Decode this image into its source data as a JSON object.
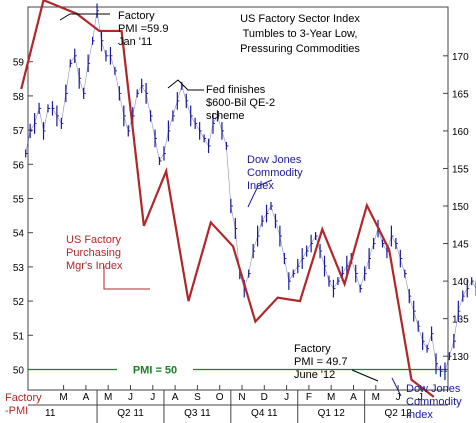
{
  "chart_data": {
    "type": "line",
    "title_lines": [
      "US Factory Sector Index",
      "Tumbles to 3-Year Low,",
      "Pressuring Commodities"
    ],
    "left_axis": {
      "ticks": [
        "59",
        "58",
        "57",
        "56",
        "55",
        "54",
        "53",
        "52",
        "51",
        "50"
      ],
      "range": [
        49.4,
        60.6
      ],
      "bottom_label_lines": [
        "Factory",
        "-PMI"
      ]
    },
    "right_axis": {
      "ticks": [
        "170",
        "165",
        "160",
        "155",
        "150",
        "145",
        "140",
        "135",
        "130"
      ],
      "range": [
        125.5,
        176.5
      ]
    },
    "x_axis": {
      "months": [
        "M",
        "A",
        "M",
        "J",
        "J",
        "A",
        "S",
        "O",
        "N",
        "D",
        "J",
        "F",
        "M",
        "A",
        "M",
        "J",
        "J"
      ],
      "quarters": [
        "11",
        "Q2 11",
        "Q3 11",
        "Q4 11",
        "Q1 12",
        "Q2 12"
      ]
    },
    "series": [
      {
        "name": "US Factory Purchasing Mgr's Index",
        "axis": "left",
        "color": "#b0272a",
        "x": [
          -1.9,
          -0.9,
          0.6,
          1.6,
          2.6,
          3.6,
          4.6,
          5.6,
          6.6,
          7.6,
          8.6,
          9.6,
          10.6,
          11.6,
          12.6,
          13.6,
          14.6,
          15.6,
          16.6
        ],
        "values": [
          58.2,
          60.8,
          60.4,
          59.9,
          59.9,
          54.2,
          55.8,
          52.0,
          54.3,
          53.6,
          51.4,
          52.1,
          52.0,
          54.1,
          52.5,
          54.8,
          53.5,
          49.7,
          49.2
        ]
      },
      {
        "name": "Dow Jones Commodity Index",
        "axis": "right",
        "color": "#1a1a9a",
        "x_start": -1.7,
        "x_step": 0.2,
        "values": [
          157,
          160,
          161,
          163,
          160,
          163,
          163,
          162,
          161,
          165,
          169,
          170,
          167,
          165,
          169,
          172,
          176,
          172,
          170,
          170,
          168,
          165,
          162,
          160,
          162,
          165,
          166,
          165,
          162,
          159,
          156,
          157,
          160,
          162,
          164,
          166,
          164,
          162,
          161,
          160,
          159,
          158,
          161,
          162,
          160,
          158,
          150,
          147,
          141,
          139,
          141,
          144,
          146,
          148,
          149,
          150,
          148,
          146,
          143,
          140,
          141,
          142,
          143,
          144,
          145,
          146,
          144,
          142,
          140,
          139,
          140,
          141,
          142,
          143,
          141,
          139,
          141,
          143,
          145,
          147,
          145,
          144,
          146,
          145,
          143,
          141,
          138,
          136,
          134,
          132,
          131,
          133,
          129,
          128,
          128,
          130,
          132,
          136,
          138,
          139,
          140,
          139
        ]
      }
    ],
    "reference_line": {
      "label": "PMI = 50",
      "value": 50,
      "axis": "left"
    },
    "annotations": [
      {
        "name": "annotation-factory-jan",
        "lines": [
          "Factory",
          "PMI =59.9",
          "Jan '11"
        ],
        "color": "black"
      },
      {
        "name": "annotation-fed-qe2",
        "lines": [
          "Fed finishes",
          "$600-Bil QE-2",
          "scheme"
        ],
        "color": "black"
      },
      {
        "name": "annotation-djci-mid",
        "lines": [
          "Dow Jones",
          "Commodity",
          "Index"
        ],
        "color": "blue"
      },
      {
        "name": "annotation-pmi-label",
        "lines": [
          "US Factory",
          "Purchasing",
          "Mgr's Index"
        ],
        "color": "red"
      },
      {
        "name": "annotation-factory-june",
        "lines": [
          "Factory",
          "PMI = 49.7",
          "June '12"
        ],
        "color": "black"
      },
      {
        "name": "annotation-djci-bottom",
        "lines": [
          "Dow Jones",
          "Commodity",
          "Index"
        ],
        "color": "blue"
      }
    ],
    "grid": false,
    "colors": {
      "pmi": "#b0272a",
      "djci": "#1a1a9a",
      "reference": "#1b7f2a"
    }
  }
}
